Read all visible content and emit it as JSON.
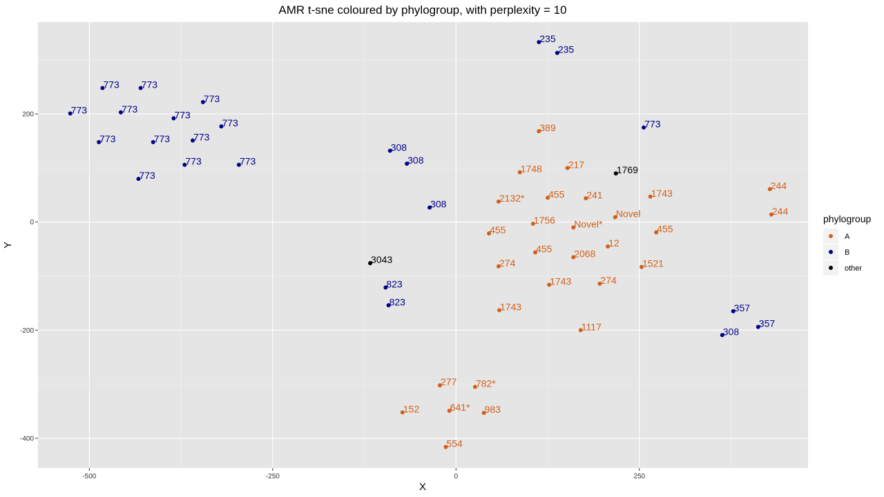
{
  "chart_data": {
    "type": "scatter",
    "title": "AMR t-sne coloured by phylogroup, with perplexity = 10",
    "xlabel": "X",
    "ylabel": "Y",
    "xlim": [
      -570,
      480
    ],
    "ylim": [
      -455,
      370
    ],
    "xticks": [
      -500,
      -250,
      0,
      250
    ],
    "xtick_labels": [
      "-500",
      "-250",
      "0",
      "250"
    ],
    "yticks": [
      -400,
      -200,
      0,
      200
    ],
    "ytick_labels": [
      "-400",
      "-200",
      "0",
      "200"
    ],
    "grid": true,
    "legend": {
      "title": "phylogroup",
      "position": "right"
    },
    "series": [
      {
        "name": "A",
        "color": "#d2601a",
        "points": [
          {
            "x": 113,
            "y": 168,
            "label": "389"
          },
          {
            "x": 152,
            "y": 100,
            "label": "217"
          },
          {
            "x": 87,
            "y": 92,
            "label": "1748"
          },
          {
            "x": 58,
            "y": 38,
            "label": "2132*"
          },
          {
            "x": 125,
            "y": 45,
            "label": "455"
          },
          {
            "x": 177,
            "y": 44,
            "label": "241"
          },
          {
            "x": 265,
            "y": 47,
            "label": "1743"
          },
          {
            "x": 428,
            "y": 61,
            "label": "244"
          },
          {
            "x": 430,
            "y": 14,
            "label": "244"
          },
          {
            "x": 217,
            "y": 9,
            "label": "Novel"
          },
          {
            "x": 105,
            "y": -3,
            "label": "1756"
          },
          {
            "x": 160,
            "y": -10,
            "label": "Novel*"
          },
          {
            "x": 45,
            "y": -21,
            "label": "455"
          },
          {
            "x": 273,
            "y": -19,
            "label": "455"
          },
          {
            "x": 108,
            "y": -56,
            "label": "455"
          },
          {
            "x": 207,
            "y": -45,
            "label": "12"
          },
          {
            "x": 160,
            "y": -65,
            "label": "2068"
          },
          {
            "x": 58,
            "y": -82,
            "label": "274"
          },
          {
            "x": 253,
            "y": -83,
            "label": "1521"
          },
          {
            "x": 127,
            "y": -116,
            "label": "1743"
          },
          {
            "x": 196,
            "y": -114,
            "label": "274"
          },
          {
            "x": 59,
            "y": -163,
            "label": "1743"
          },
          {
            "x": 170,
            "y": -200,
            "label": "1117"
          },
          {
            "x": -22,
            "y": -302,
            "label": "277"
          },
          {
            "x": 26,
            "y": -305,
            "label": "782*"
          },
          {
            "x": -73,
            "y": -352,
            "label": "152"
          },
          {
            "x": -9,
            "y": -349,
            "label": "641*"
          },
          {
            "x": 38,
            "y": -353,
            "label": "983"
          },
          {
            "x": -14,
            "y": -416,
            "label": "554"
          }
        ]
      },
      {
        "name": "B",
        "color": "#00008b",
        "points": [
          {
            "x": 113,
            "y": 333,
            "label": "235"
          },
          {
            "x": 138,
            "y": 313,
            "label": "235"
          },
          {
            "x": -482,
            "y": 248,
            "label": "773"
          },
          {
            "x": -430,
            "y": 248,
            "label": "773"
          },
          {
            "x": -345,
            "y": 222,
            "label": "773"
          },
          {
            "x": -526,
            "y": 201,
            "label": "773"
          },
          {
            "x": -457,
            "y": 203,
            "label": "773"
          },
          {
            "x": -385,
            "y": 192,
            "label": "773"
          },
          {
            "x": -320,
            "y": 177,
            "label": "773"
          },
          {
            "x": -487,
            "y": 148,
            "label": "773"
          },
          {
            "x": -413,
            "y": 148,
            "label": "773"
          },
          {
            "x": -359,
            "y": 151,
            "label": "773"
          },
          {
            "x": -370,
            "y": 106,
            "label": "773"
          },
          {
            "x": -296,
            "y": 106,
            "label": "773"
          },
          {
            "x": -433,
            "y": 80,
            "label": "773"
          },
          {
            "x": 256,
            "y": 175,
            "label": "773"
          },
          {
            "x": -90,
            "y": 132,
            "label": "308"
          },
          {
            "x": -67,
            "y": 108,
            "label": "308"
          },
          {
            "x": -36,
            "y": 27,
            "label": "308"
          },
          {
            "x": -96,
            "y": -121,
            "label": "823"
          },
          {
            "x": -92,
            "y": -154,
            "label": "823"
          },
          {
            "x": 378,
            "y": -165,
            "label": "357"
          },
          {
            "x": 412,
            "y": -194,
            "label": "357"
          },
          {
            "x": 363,
            "y": -209,
            "label": "308"
          }
        ]
      },
      {
        "name": "other",
        "color": "#000000",
        "points": [
          {
            "x": 218,
            "y": 90,
            "label": "1769"
          },
          {
            "x": -117,
            "y": -76,
            "label": "3043"
          }
        ]
      }
    ]
  }
}
